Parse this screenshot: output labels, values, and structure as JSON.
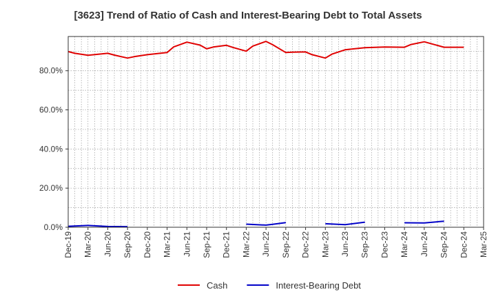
{
  "chart_data": {
    "type": "line",
    "title": "[3623]  Trend of Ratio of Cash and Interest-Bearing Debt to Total Assets",
    "xlabel": "",
    "ylabel": "",
    "ylim": [
      0,
      97.5
    ],
    "yticks": [
      0,
      20,
      40,
      60,
      80
    ],
    "ytick_labels": [
      "0.0%",
      "20.0%",
      "40.0%",
      "60.0%",
      "80.0%"
    ],
    "x_tick_labels": [
      "Dec-19",
      "Mar-20",
      "Jun-20",
      "Sep-20",
      "Dec-20",
      "Mar-21",
      "Jun-21",
      "Sep-21",
      "Dec-21",
      "Mar-22",
      "Jun-22",
      "Sep-22",
      "Dec-22",
      "Mar-23",
      "Jun-23",
      "Sep-23",
      "Dec-23",
      "Mar-24",
      "Jun-24",
      "Sep-24",
      "Dec-24",
      "Mar-25"
    ],
    "grid": true,
    "legend_position": "bottom",
    "series": [
      {
        "name": "Cash",
        "color": "#e00000",
        "points": [
          [
            "Dec-19",
            89.8
          ],
          [
            "Jan-20",
            88.9
          ],
          [
            "Mar-20",
            87.9
          ],
          [
            "Jun-20",
            88.9
          ],
          [
            "Jul-20",
            88.0
          ],
          [
            "Sep-20",
            86.5
          ],
          [
            "Oct-20",
            87.2
          ],
          [
            "Dec-20",
            88.2
          ],
          [
            "Mar-21",
            89.3
          ],
          [
            "Apr-21",
            92.2
          ],
          [
            "Jun-21",
            94.6
          ],
          [
            "Aug-21",
            93.1
          ],
          [
            "Sep-21",
            91.2
          ],
          [
            "Oct-21",
            92.1
          ],
          [
            "Dec-21",
            93.0
          ],
          [
            "Jan-22",
            91.9
          ],
          [
            "Mar-22",
            90.0
          ],
          [
            "Apr-22",
            92.6
          ],
          [
            "Jun-22",
            95.0
          ],
          [
            "Jul-22",
            93.3
          ],
          [
            "Sep-22",
            89.3
          ],
          [
            "Oct-22",
            89.5
          ],
          [
            "Dec-22",
            89.6
          ],
          [
            "Jan-23",
            88.2
          ],
          [
            "Mar-23",
            86.5
          ],
          [
            "Apr-23",
            88.5
          ],
          [
            "Jun-23",
            90.7
          ],
          [
            "Sep-23",
            91.8
          ],
          [
            "Dec-23",
            92.1
          ],
          [
            "Mar-24",
            92.0
          ],
          [
            "Apr-24",
            93.4
          ],
          [
            "Jun-24",
            94.8
          ],
          [
            "Sep-24",
            92.0
          ],
          [
            "Oct-24",
            92.0
          ],
          [
            "Dec-24",
            92.0
          ]
        ]
      },
      {
        "name": "Interest-Bearing Debt",
        "color": "#0000c8",
        "segments": [
          [
            [
              "Dec-19",
              0.5
            ],
            [
              "Mar-20",
              0.9
            ],
            [
              "Jun-20",
              0.4
            ],
            [
              "Sep-20",
              0.3
            ]
          ],
          [
            [
              "Mar-22",
              1.6
            ],
            [
              "Jun-22",
              1.1
            ],
            [
              "Jul-22",
              1.5
            ],
            [
              "Sep-22",
              2.4
            ]
          ],
          [
            [
              "Mar-23",
              1.8
            ],
            [
              "Jun-23",
              1.3
            ],
            [
              "Sep-23",
              2.6
            ]
          ],
          [
            [
              "Mar-24",
              2.3
            ],
            [
              "Jun-24",
              2.2
            ],
            [
              "Sep-24",
              3.1
            ]
          ]
        ]
      }
    ]
  }
}
